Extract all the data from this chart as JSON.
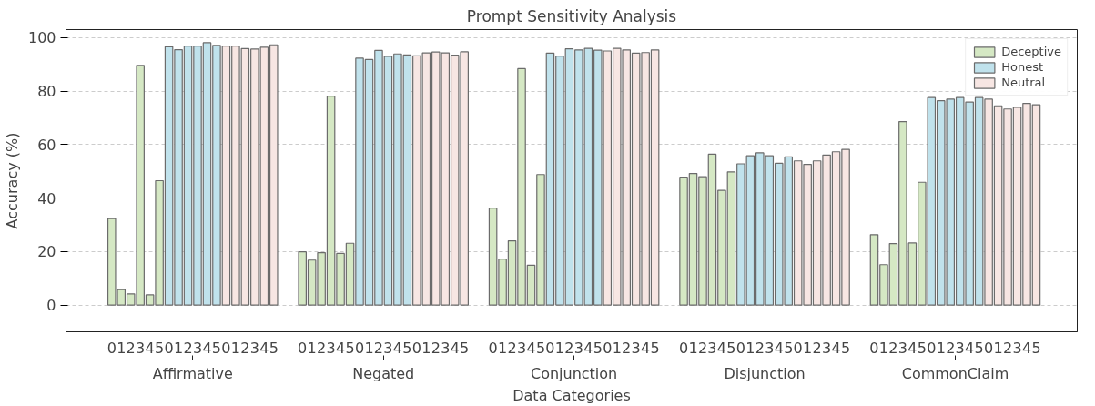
{
  "chart_data": {
    "type": "bar",
    "title": "Prompt Sensitivity Analysis",
    "xlabel": "Data Categories",
    "ylabel": "Accuracy (%)",
    "categories": [
      "0",
      "1",
      "2",
      "3",
      "4",
      "5",
      "0",
      "1",
      "2",
      "3",
      "4",
      "5",
      "0",
      "1",
      "2",
      "3",
      "4",
      "5",
      null,
      null,
      "0",
      "1",
      "2",
      "3",
      "4",
      "5",
      "0",
      "1",
      "2",
      "3",
      "4",
      "5",
      "0",
      "1",
      "2",
      "3",
      "4",
      "5",
      null,
      null,
      "0",
      "1",
      "2",
      "3",
      "4",
      "5",
      "0",
      "1",
      "2",
      "3",
      "4",
      "5",
      "0",
      "1",
      "2",
      "3",
      "4",
      "5",
      null,
      null,
      "0",
      "1",
      "2",
      "3",
      "4",
      "5",
      "0",
      "1",
      "2",
      "3",
      "4",
      "5",
      "0",
      "1",
      "2",
      "3",
      "4",
      "5",
      null,
      null,
      "0",
      "1",
      "2",
      "3",
      "4",
      "5",
      "0",
      "1",
      "2",
      "3",
      "4",
      "5",
      "0",
      "1",
      "2",
      "3",
      "4",
      "5"
    ],
    "annotations": [
      "Affirmative",
      "Negated",
      "Conjunction",
      "Disjunction",
      "CommonClaim"
    ],
    "series": [
      {
        "name": "Deceptive",
        "color": "#d5e8c4",
        "values": [
          32.3,
          5.8,
          4.2,
          89.6,
          3.8,
          46.5,
          null,
          null,
          null,
          null,
          null,
          null,
          null,
          null,
          null,
          null,
          null,
          null,
          null,
          null,
          19.9,
          16.8,
          19.6,
          78.1,
          19.3,
          23.1,
          null,
          null,
          null,
          null,
          null,
          null,
          null,
          null,
          null,
          null,
          null,
          null,
          null,
          null,
          36.2,
          17.2,
          24.0,
          88.4,
          14.9,
          48.8,
          null,
          null,
          null,
          null,
          null,
          null,
          null,
          null,
          null,
          null,
          null,
          null,
          null,
          null,
          47.8,
          49.2,
          48.0,
          56.4,
          42.9,
          49.8,
          null,
          null,
          null,
          null,
          null,
          null,
          null,
          null,
          null,
          null,
          null,
          null,
          null,
          null,
          26.3,
          15.1,
          23.0,
          68.6,
          23.2,
          45.9,
          null,
          null,
          null,
          null,
          null,
          null,
          null,
          null,
          null,
          null,
          null,
          null
        ]
      },
      {
        "name": "Honest",
        "color": "#c0e2ec",
        "values": [
          null,
          null,
          null,
          null,
          null,
          null,
          96.6,
          95.5,
          96.8,
          96.8,
          98.1,
          97.1,
          null,
          null,
          null,
          null,
          null,
          null,
          null,
          null,
          null,
          null,
          null,
          null,
          null,
          null,
          92.3,
          91.8,
          95.2,
          93.0,
          93.9,
          93.5,
          null,
          null,
          null,
          null,
          null,
          null,
          null,
          null,
          null,
          null,
          null,
          null,
          null,
          null,
          94.2,
          93.1,
          95.8,
          95.4,
          96.0,
          95.3,
          null,
          null,
          null,
          null,
          null,
          null,
          null,
          null,
          null,
          null,
          null,
          null,
          null,
          null,
          52.8,
          55.8,
          56.9,
          55.8,
          53.0,
          55.4,
          null,
          null,
          null,
          null,
          null,
          null,
          null,
          null,
          null,
          null,
          null,
          null,
          null,
          null,
          77.6,
          76.4,
          77.0,
          77.6,
          75.9,
          77.6,
          null,
          null,
          null,
          null,
          null,
          null
        ]
      },
      {
        "name": "Neutral",
        "color": "#f7e6e3",
        "values": [
          null,
          null,
          null,
          null,
          null,
          null,
          null,
          null,
          null,
          null,
          null,
          null,
          96.8,
          96.8,
          95.9,
          95.7,
          96.4,
          97.3,
          null,
          null,
          null,
          null,
          null,
          null,
          null,
          null,
          null,
          null,
          null,
          null,
          null,
          null,
          93.2,
          94.3,
          94.6,
          94.3,
          93.4,
          94.7,
          null,
          null,
          null,
          null,
          null,
          null,
          null,
          null,
          null,
          null,
          null,
          null,
          null,
          null,
          95.0,
          96.0,
          95.4,
          94.2,
          94.4,
          95.4,
          null,
          null,
          null,
          null,
          null,
          null,
          null,
          null,
          null,
          null,
          null,
          null,
          null,
          null,
          53.9,
          52.6,
          53.9,
          56.1,
          57.3,
          58.2,
          null,
          null,
          null,
          null,
          null,
          null,
          null,
          null,
          null,
          null,
          null,
          null,
          null,
          null,
          77.0,
          74.5,
          73.3,
          73.9,
          75.4,
          74.9
        ]
      }
    ],
    "ylim": [
      -10,
      103
    ],
    "yticks": [
      0,
      20,
      40,
      60,
      80,
      100
    ],
    "grid": "y",
    "legend": "top right"
  }
}
